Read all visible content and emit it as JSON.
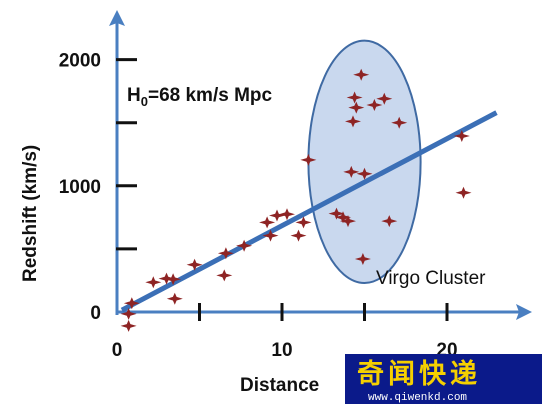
{
  "chart_data": {
    "type": "scatter",
    "xlabel": "Distance",
    "ylabel": "Redshift (km/s)",
    "xlim": [
      0,
      24
    ],
    "ylim": [
      -60,
      2200
    ],
    "x_ticks": [
      0,
      10,
      20
    ],
    "x_minor_ticks": [
      5,
      15
    ],
    "y_ticks": [
      0,
      1000,
      2000
    ],
    "y_minor_ticks": [
      500,
      1500
    ],
    "grid": false,
    "annotation": "H0=68 km/s Mpc",
    "annotation_parts": {
      "base": "H",
      "sub": "0",
      "rest": "=68 km/s Mpc"
    },
    "fit_line": {
      "x": [
        0.3,
        23
      ],
      "y": [
        15,
        1580
      ]
    },
    "cluster": {
      "label": "Virgo Cluster",
      "center_x": 15,
      "center_y": 1190,
      "radius_x": 3.4,
      "radius_y": 960
    },
    "points": [
      {
        "x": 0.7,
        "y": -15
      },
      {
        "x": 0.7,
        "y": -110
      },
      {
        "x": 0.9,
        "y": 70
      },
      {
        "x": 2.2,
        "y": 235
      },
      {
        "x": 3.0,
        "y": 265
      },
      {
        "x": 3.4,
        "y": 260
      },
      {
        "x": 3.5,
        "y": 105
      },
      {
        "x": 4.7,
        "y": 375
      },
      {
        "x": 6.5,
        "y": 290
      },
      {
        "x": 6.6,
        "y": 465
      },
      {
        "x": 7.7,
        "y": 525
      },
      {
        "x": 9.1,
        "y": 710
      },
      {
        "x": 9.3,
        "y": 605
      },
      {
        "x": 9.7,
        "y": 765
      },
      {
        "x": 10.3,
        "y": 775
      },
      {
        "x": 11.0,
        "y": 605
      },
      {
        "x": 11.3,
        "y": 710
      },
      {
        "x": 11.6,
        "y": 1205
      },
      {
        "x": 13.3,
        "y": 780
      },
      {
        "x": 13.7,
        "y": 750
      },
      {
        "x": 14.0,
        "y": 720
      },
      {
        "x": 14.2,
        "y": 1110
      },
      {
        "x": 14.3,
        "y": 1510
      },
      {
        "x": 14.4,
        "y": 1700
      },
      {
        "x": 14.5,
        "y": 1620
      },
      {
        "x": 14.8,
        "y": 1880
      },
      {
        "x": 14.9,
        "y": 420
      },
      {
        "x": 15.0,
        "y": 1095
      },
      {
        "x": 15.6,
        "y": 1640
      },
      {
        "x": 16.2,
        "y": 1690
      },
      {
        "x": 16.5,
        "y": 720
      },
      {
        "x": 17.1,
        "y": 1500
      },
      {
        "x": 20.9,
        "y": 1395
      },
      {
        "x": 21.0,
        "y": 945
      }
    ]
  },
  "watermark": {
    "text": "奇闻快递",
    "url": "www.qiwenkd.com",
    "bg_color": "#0b1a8a",
    "text_color": "#f5d000"
  },
  "colors": {
    "axis": "#4a7fc1",
    "ticks": "#111111",
    "fit_line": "#3b6fb6",
    "ellipse_fill": "#c9d8ee",
    "ellipse_stroke": "#3f6aa3",
    "marker": "#8e2424"
  }
}
